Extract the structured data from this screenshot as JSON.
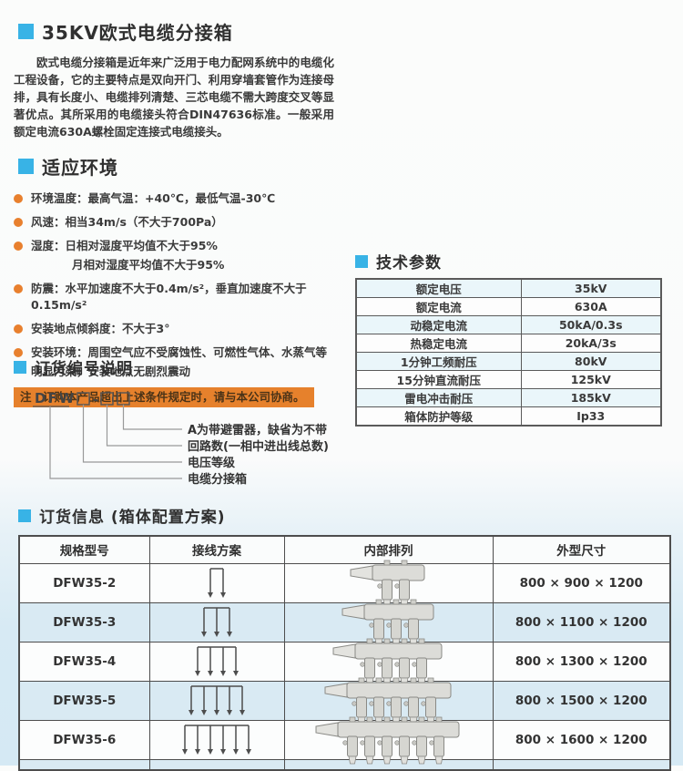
{
  "theme": {
    "accent_color": "#38b3e6",
    "bullet_color": "#e8802e",
    "note_bg_color": "#e6812c",
    "alt_row_color": "#d9eaf3"
  },
  "intro": {
    "title": "35KV欧式电缆分接箱",
    "body": "欧式电缆分接箱是近年来广泛用于电力配网系统中的电缆化工程设备，它的主要特点是双向开门、利用穿墙套管作为连接母排，具有长度小、电缆排列清楚、三芯电缆不需大跨度交叉等显著优点。其所采用的电缆接头符合DIN47636标准。一般采用额定电流630A螺栓固定连接式电缆接头。"
  },
  "environment": {
    "title": "适应环境",
    "items": [
      {
        "text": "环境温度：最高气温：+40℃，最低气温-30℃",
        "cont": ""
      },
      {
        "text": "风速：相当34m/s（不大于700Pa）",
        "cont": ""
      },
      {
        "text": "湿度：日相对湿度平均值不大于95%",
        "cont": "月相对湿度平均值不大于95%"
      },
      {
        "text": "防震：水平加速度不大于0.4m/s²，垂直加速度不大于0.15m/s²",
        "cont": ""
      },
      {
        "text": "安装地点倾斜度：不大于3°",
        "cont": ""
      },
      {
        "text": "安装环境：周围空气应不受腐蚀性、可燃性气体、水蒸气等",
        "cont": "明显污染，安装地点无剧烈震动"
      }
    ],
    "note": "注　订购本产品超出上述条件规定时，请与本公司协商。"
  },
  "tech": {
    "title": "技术参数",
    "rows": [
      [
        "额定电压",
        "35kV"
      ],
      [
        "额定电流",
        "630A"
      ],
      [
        "动稳定电流",
        "50kA/0.3s"
      ],
      [
        "热稳定电流",
        "20kA/3s"
      ],
      [
        "1分钟工频耐压",
        "80kV"
      ],
      [
        "15分钟直流耐压",
        "125kV"
      ],
      [
        "雷电冲击耐压",
        "185kV"
      ],
      [
        "箱体防护等级",
        "Ip33"
      ]
    ]
  },
  "order_code": {
    "title": "订货编号说明",
    "prefix": "DFW",
    "dash": "-",
    "labels": [
      "A为带避雷器，缺省为不带",
      "回路数(一相中进出线总数)",
      "电压等级",
      "电缆分接箱"
    ]
  },
  "order_info": {
    "title": "订货信息 (箱体配置方案)",
    "headers": [
      "规格型号",
      "接线方案",
      "内部排列",
      "外型尺寸"
    ],
    "rows": [
      {
        "model": "DFW35-2",
        "circuits": 2,
        "size": "800 × 900 × 1200"
      },
      {
        "model": "DFW35-3",
        "circuits": 3,
        "size": "800 × 1100 × 1200"
      },
      {
        "model": "DFW35-4",
        "circuits": 4,
        "size": "800 × 1300 × 1200"
      },
      {
        "model": "DFW35-5",
        "circuits": 5,
        "size": "800 × 1500 × 1200"
      },
      {
        "model": "DFW35-6",
        "circuits": 6,
        "size": "800 × 1600 × 1200"
      }
    ]
  }
}
